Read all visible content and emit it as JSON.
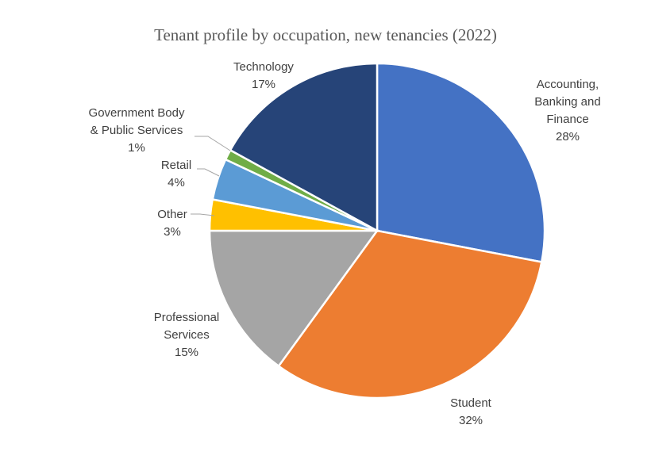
{
  "chart_data": {
    "type": "pie",
    "title": "Tenant profile by occupation, new tenancies (2022)",
    "slices": [
      {
        "name_lines": [
          "Accounting,",
          "Banking and",
          "Finance"
        ],
        "pct_label": "28%",
        "value": 28,
        "color": "#4472c4"
      },
      {
        "name_lines": [
          "Student"
        ],
        "pct_label": "32%",
        "value": 32,
        "color": "#ed7d31"
      },
      {
        "name_lines": [
          "Professional",
          "Services"
        ],
        "pct_label": "15%",
        "value": 15,
        "color": "#a5a5a5"
      },
      {
        "name_lines": [
          "Other"
        ],
        "pct_label": "3%",
        "value": 3,
        "color": "#ffc000"
      },
      {
        "name_lines": [
          "Retail"
        ],
        "pct_label": "4%",
        "value": 4,
        "color": "#5b9bd5"
      },
      {
        "name_lines": [
          "Government Body",
          "& Public Services"
        ],
        "pct_label": "1%",
        "value": 1,
        "color": "#70ad47"
      },
      {
        "name_lines": [
          "Technology"
        ],
        "pct_label": "17%",
        "value": 17,
        "color": "#264478"
      }
    ],
    "start_angle": "12 o'clock",
    "direction": "clockwise",
    "legend": "none (data labels)"
  }
}
